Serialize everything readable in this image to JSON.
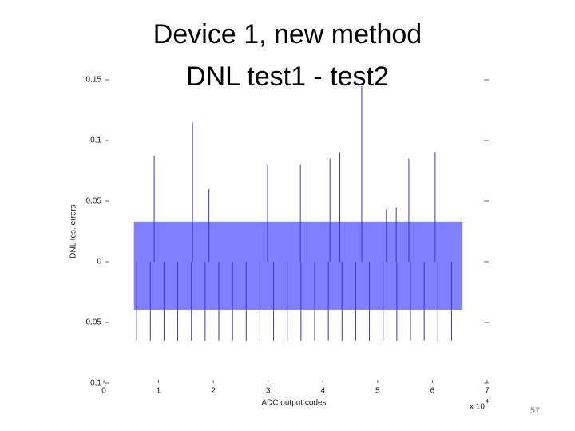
{
  "chart_data": {
    "type": "spikes",
    "title_lines": [
      "Device 1, new method",
      "DNL test1 - test2"
    ],
    "y_label": "DNL tes. errors",
    "x_label": "ADC output codes",
    "x_multiplier": "x 10",
    "x_exponent": "4",
    "xlim": [
      0,
      7
    ],
    "xticks": [
      0,
      1,
      2,
      3,
      4,
      5,
      6,
      7
    ],
    "ylim": [
      -0.1,
      0.15
    ],
    "yticks": [
      {
        "value": -0.1,
        "label": "0.1"
      },
      {
        "value": -0.05,
        "label": "0.05"
      },
      0,
      0.05,
      0.1,
      0.15
    ],
    "band": {
      "x": [
        0.55,
        6.55
      ],
      "values": [
        -0.04,
        0.033
      ],
      "color": "#7f7fff"
    },
    "spikes": {
      "color": "#3a3ab0",
      "x": [
        0.92,
        1.62,
        1.92,
        2.99,
        3.59,
        4.13,
        4.31,
        4.71,
        5.16,
        5.34,
        5.57,
        6.05,
        0.6,
        0.85,
        1.1,
        1.35,
        1.6,
        1.85,
        2.1,
        2.35,
        2.6,
        2.85,
        3.1,
        3.35,
        3.6,
        3.85,
        4.1,
        4.35,
        4.6,
        4.85,
        5.1,
        5.35,
        5.6,
        5.85,
        6.1,
        6.35
      ],
      "values": [
        0.0875,
        0.115,
        0.06,
        0.08,
        0.08,
        0.085,
        0.09,
        0.145,
        0.043,
        0.045,
        0.085,
        0.09,
        -0.065,
        -0.065,
        -0.065,
        -0.065,
        -0.065,
        -0.065,
        -0.065,
        -0.065,
        -0.065,
        -0.065,
        -0.065,
        -0.065,
        -0.065,
        -0.065,
        -0.065,
        -0.065,
        -0.065,
        -0.065,
        -0.065,
        -0.065,
        -0.065,
        -0.065,
        -0.065,
        -0.065
      ]
    },
    "page_number": "57"
  }
}
